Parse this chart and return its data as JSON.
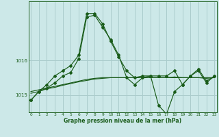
{
  "title": "Graphe pression niveau de la mer (hPa)",
  "background_color": "#cce8e8",
  "plot_bg_color": "#cce8e8",
  "line_color": "#1a5c1a",
  "grid_color": "#aacccc",
  "ylim_min": 1014.5,
  "ylim_max": 1017.7,
  "yticks": [
    1015,
    1016
  ],
  "series_flat": [
    1015.1,
    1015.15,
    1015.2,
    1015.25,
    1015.3,
    1015.35,
    1015.4,
    1015.45,
    1015.48,
    1015.5,
    1015.5,
    1015.5,
    1015.5,
    1015.5,
    1015.5,
    1015.5,
    1015.5,
    1015.5,
    1015.52,
    1015.5,
    1015.5,
    1015.5,
    1015.5,
    1015.5
  ],
  "series_flat2": [
    1015.05,
    1015.1,
    1015.18,
    1015.22,
    1015.28,
    1015.33,
    1015.38,
    1015.42,
    1015.46,
    1015.48,
    1015.5,
    1015.5,
    1015.5,
    1015.5,
    1015.5,
    1015.5,
    1015.5,
    1015.5,
    1015.5,
    1015.5,
    1015.5,
    1015.5,
    1015.48,
    1015.5
  ],
  "series_main": [
    1014.85,
    1015.1,
    1015.2,
    1015.35,
    1015.55,
    1015.65,
    1016.05,
    1017.25,
    1017.3,
    1016.95,
    1016.6,
    1016.15,
    1015.5,
    1015.3,
    1015.5,
    1015.55,
    1014.7,
    1014.45,
    1015.1,
    1015.3,
    1015.55,
    1015.7,
    1015.35,
    1015.55
  ],
  "series_upper": [
    1014.85,
    1015.1,
    1015.3,
    1015.55,
    1015.7,
    1015.85,
    1016.15,
    1017.35,
    1017.35,
    1017.05,
    1016.55,
    1016.1,
    1015.7,
    1015.5,
    1015.55,
    1015.55,
    1015.55,
    1015.55,
    1015.7,
    1015.3,
    1015.55,
    1015.75,
    1015.4,
    1015.55
  ]
}
